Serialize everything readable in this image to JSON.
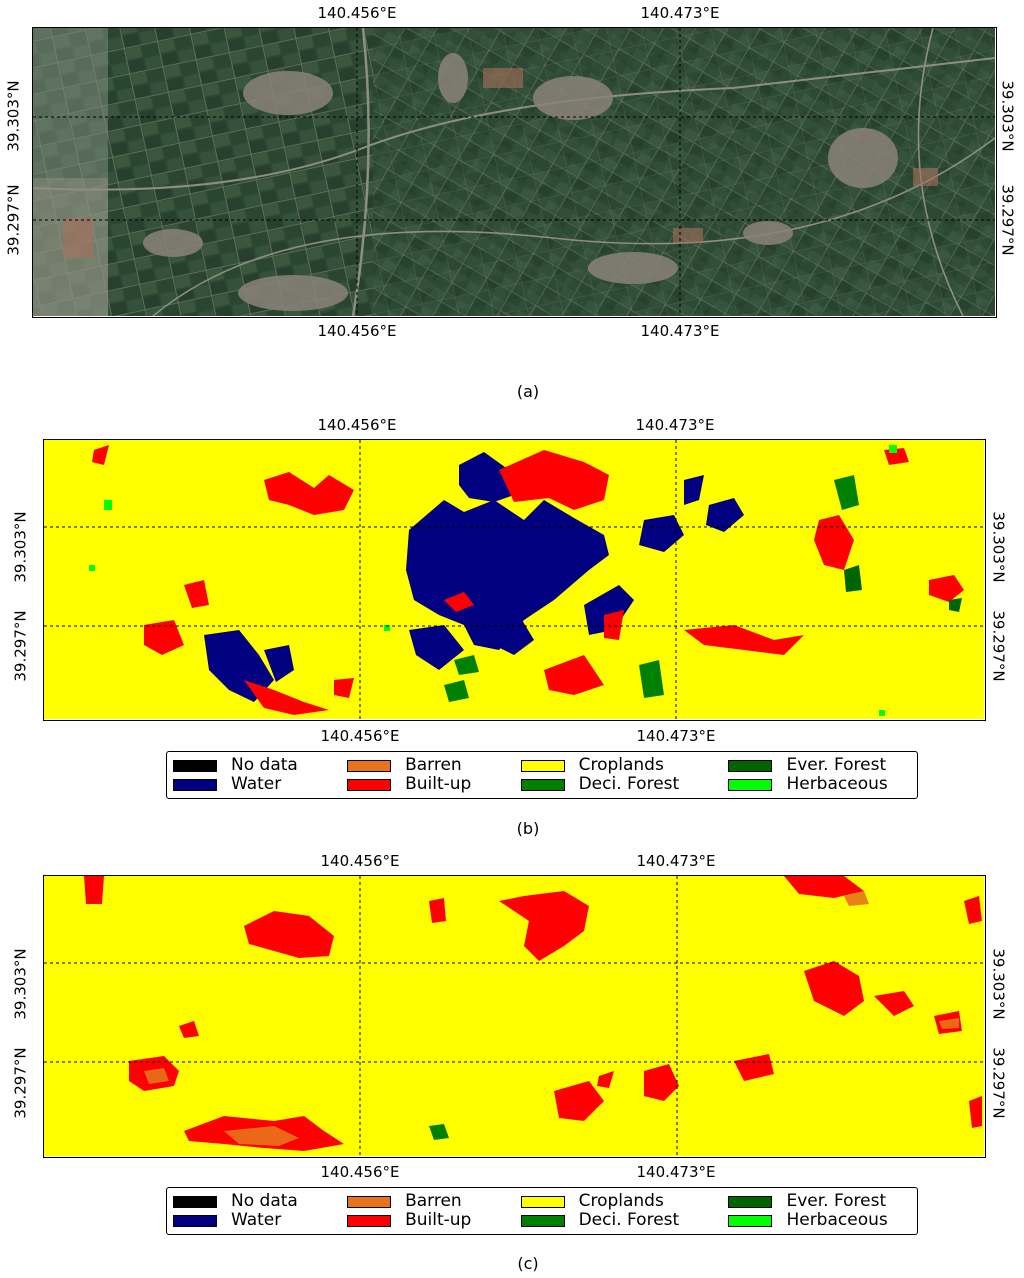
{
  "ticks": {
    "lon_left": "140.456°E",
    "lon_right": "140.473°E",
    "lat_top": "39.303°N",
    "lat_bottom": "39.297°N"
  },
  "captions": {
    "a": "(a)",
    "b": "(b)",
    "c": "(c)"
  },
  "legend": [
    {
      "label": "No data",
      "color": "#000000"
    },
    {
      "label": "Barren",
      "color": "#e8731a"
    },
    {
      "label": "Croplands",
      "color": "#ffff00"
    },
    {
      "label": "Ever. Forest",
      "color": "#006400"
    },
    {
      "label": "Water",
      "color": "#000080"
    },
    {
      "label": "Built-up",
      "color": "#ff0000"
    },
    {
      "label": "Deci. Forest",
      "color": "#008000"
    },
    {
      "label": "Herbaceous",
      "color": "#00ff00"
    }
  ],
  "colors": {
    "croplands": "#ffff00",
    "built_up": "#ff0000",
    "water": "#000080",
    "deci_forest": "#008000",
    "ever_forest": "#006400",
    "herbaceous": "#00ff00",
    "barren": "#e8731a",
    "satellite_base": "#2f4a34"
  }
}
